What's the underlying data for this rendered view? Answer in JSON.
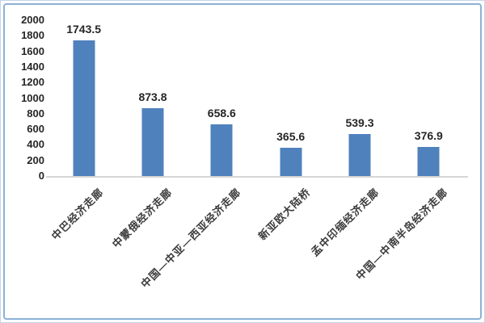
{
  "chart_data": {
    "type": "bar",
    "categories": [
      "中巴经济走廊",
      "中蒙俄经济走廊",
      "中国—中亚—西亚经济走廊",
      "新亚欧大陆桥",
      "孟中印缅经济走廊",
      "中国—中南半岛经济走廊"
    ],
    "values": [
      1743.5,
      873.8,
      658.6,
      365.6,
      539.3,
      376.9
    ],
    "value_labels": [
      "1743.5",
      "873.8",
      "658.6",
      "365.6",
      "539.3",
      "376.9"
    ],
    "title": "",
    "xlabel": "",
    "ylabel": "",
    "ylim": [
      0,
      2000
    ],
    "yticks": [
      0,
      200,
      400,
      600,
      800,
      1000,
      1200,
      1400,
      1600,
      1800,
      2000
    ],
    "grid": false,
    "legend": null,
    "x_label_rotation_deg": 45
  },
  "colors": {
    "bar_fill": "#4f81bd",
    "bar_edge": "#a8c0dd",
    "axis_line": "#d6d6d6",
    "frame_border": "#8cb0d9",
    "text": "#262626"
  }
}
